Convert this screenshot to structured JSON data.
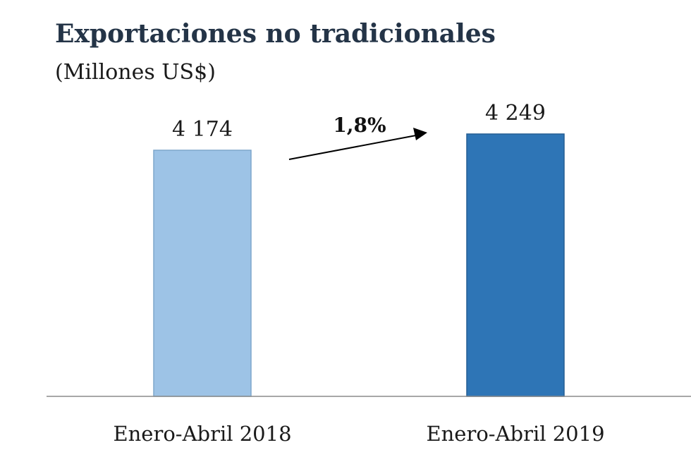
{
  "chart_data": {
    "type": "bar",
    "title": "Exportaciones no tradicionales",
    "subtitle": "(Millones US$)",
    "categories": [
      "Enero-Abril 2018",
      "Enero-Abril 2019"
    ],
    "values": [
      4174,
      4249
    ],
    "value_labels": [
      "4 174",
      "4 249"
    ],
    "colors": [
      "#9dc3e6",
      "#2e75b6"
    ],
    "annotation": "1,8%",
    "grid": false,
    "legend": "none"
  }
}
